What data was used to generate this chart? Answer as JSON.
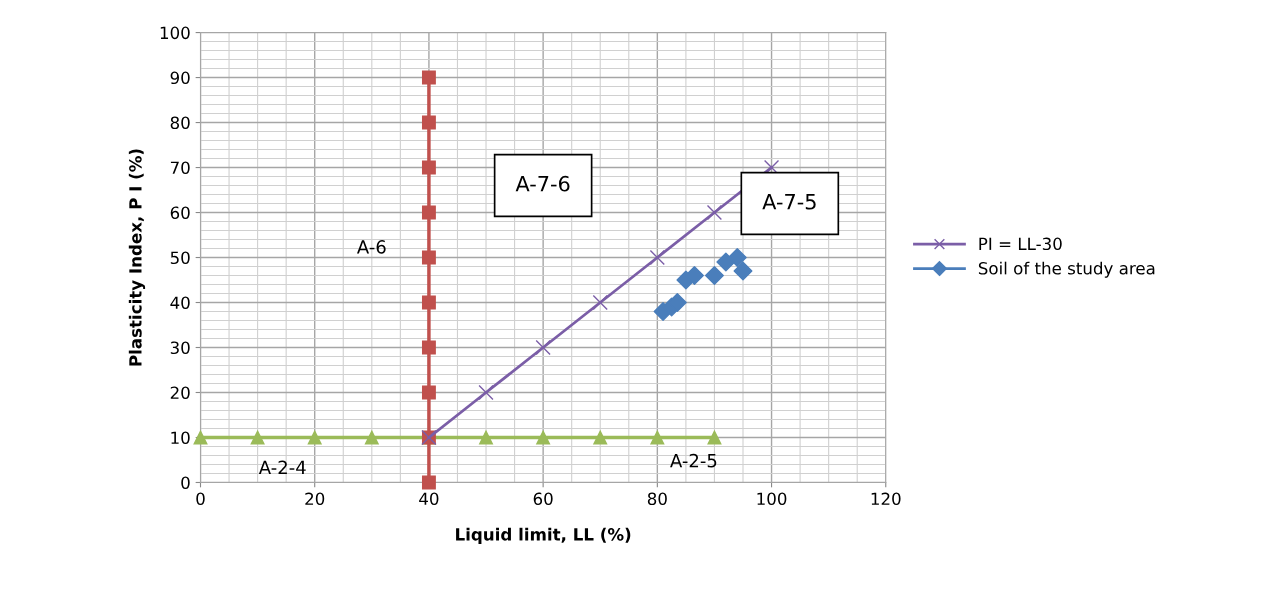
{
  "chart_data": {
    "type": "line",
    "xlabel": "Liquid limit, LL (%)",
    "ylabel": "Plasticity Index, P I (%)",
    "series": [
      {
        "type": "line",
        "color": "#9bbb59",
        "marker": "triangle",
        "x": [
          0,
          10,
          20,
          30,
          40,
          50,
          60,
          70,
          80,
          90
        ],
        "values": [
          10,
          10,
          10,
          10,
          10,
          10,
          10,
          10,
          10,
          10
        ]
      },
      {
        "type": "line",
        "color": "#c0504d",
        "marker": "square",
        "x": [
          40,
          40,
          40,
          40,
          40,
          40,
          40,
          40,
          40,
          40
        ],
        "values": [
          0,
          10,
          20,
          30,
          40,
          50,
          60,
          70,
          80,
          90
        ]
      },
      {
        "type": "line",
        "name": "PI = LL-30",
        "color": "#7b5ea7",
        "marker": "cross",
        "x": [
          40,
          50,
          60,
          70,
          80,
          90,
          100
        ],
        "values": [
          10,
          20,
          30,
          40,
          50,
          60,
          70
        ]
      },
      {
        "type": "scatter",
        "name": "Soil of the study area",
        "color": "#4a7ebb",
        "marker": "diamond",
        "x": [
          81,
          82.5,
          83.5,
          85,
          86.5,
          90,
          92,
          94,
          95
        ],
        "values": [
          38,
          39,
          40,
          45,
          46,
          46,
          49,
          50,
          47
        ]
      }
    ],
    "annotations": [
      "A-7-6",
      "A-7-5",
      "A-6",
      "A-2-4",
      "A-2-5"
    ],
    "xlim": [
      0,
      120
    ],
    "ylim": [
      0,
      100
    ],
    "xticks": [
      0,
      20,
      40,
      60,
      80,
      100,
      120
    ],
    "yticks": [
      0,
      10,
      20,
      30,
      40,
      50,
      60,
      70,
      80,
      90,
      100
    ],
    "grid": true,
    "legend": "right"
  }
}
